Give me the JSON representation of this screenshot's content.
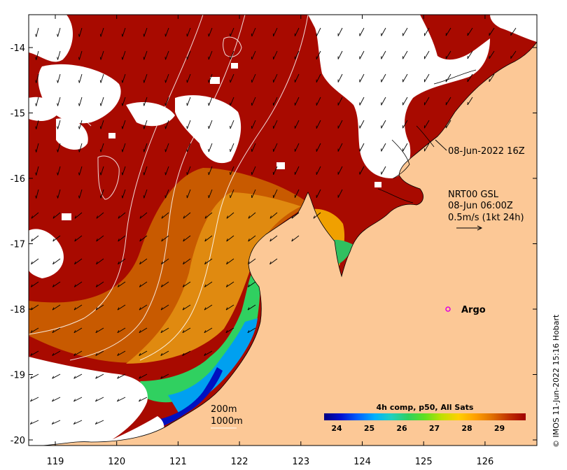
{
  "map": {
    "date_label": "08-Jun-2022 16Z",
    "current_model": "NRT00 GSL",
    "current_time": "08-Jun 06:00Z",
    "current_scale": "0.5m/s (1kt 24h)",
    "argo_label": "Argo",
    "contour_200": "200m",
    "contour_1000": "1000m",
    "copyright": "© IMOS 11-Jun-2022 15:16 Hobart",
    "colorbar": {
      "title": "4h comp, p50, All Sats",
      "ticks": [
        "24",
        "25",
        "26",
        "27",
        "28",
        "29"
      ],
      "colors": [
        "#000080",
        "#0010d0",
        "#0060ff",
        "#00b0ff",
        "#20d0c0",
        "#30d060",
        "#60e020",
        "#c0e000",
        "#ffd000",
        "#ffa000",
        "#e07000",
        "#c03000",
        "#a00000"
      ]
    },
    "lon_ticks": [
      "119",
      "120",
      "121",
      "122",
      "123",
      "124",
      "125",
      "126"
    ],
    "lat_ticks": [
      "-14",
      "-15",
      "-16",
      "-17",
      "-18",
      "-19",
      "-20"
    ],
    "colors": {
      "land": "#fcc896",
      "warm": "#a80a00",
      "mid": "#d06000",
      "orange": "#e08a10",
      "argo": "#e000e0"
    }
  }
}
